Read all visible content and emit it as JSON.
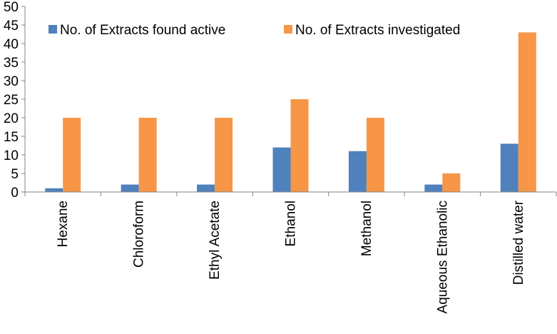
{
  "chart_data": {
    "type": "bar",
    "categories": [
      "Hexane",
      "Chloroform",
      "Ethyl Acetate",
      "Ethanol",
      "Methanol",
      "Aqueous Ethanolic",
      "Distilled water"
    ],
    "series": [
      {
        "name": "No. of Extracts found active",
        "values": [
          1,
          2,
          2,
          12,
          11,
          2,
          13
        ],
        "color": "#4f81bd"
      },
      {
        "name": "No. of Extracts investigated",
        "values": [
          20,
          20,
          20,
          25,
          20,
          5,
          43
        ],
        "color": "#f79646"
      }
    ],
    "yticks": [
      "0",
      "5",
      "10",
      "15",
      "20",
      "25",
      "30",
      "35",
      "40",
      "45",
      "50"
    ],
    "ylim": [
      0,
      50
    ],
    "grid": false,
    "legend_position": "top"
  }
}
